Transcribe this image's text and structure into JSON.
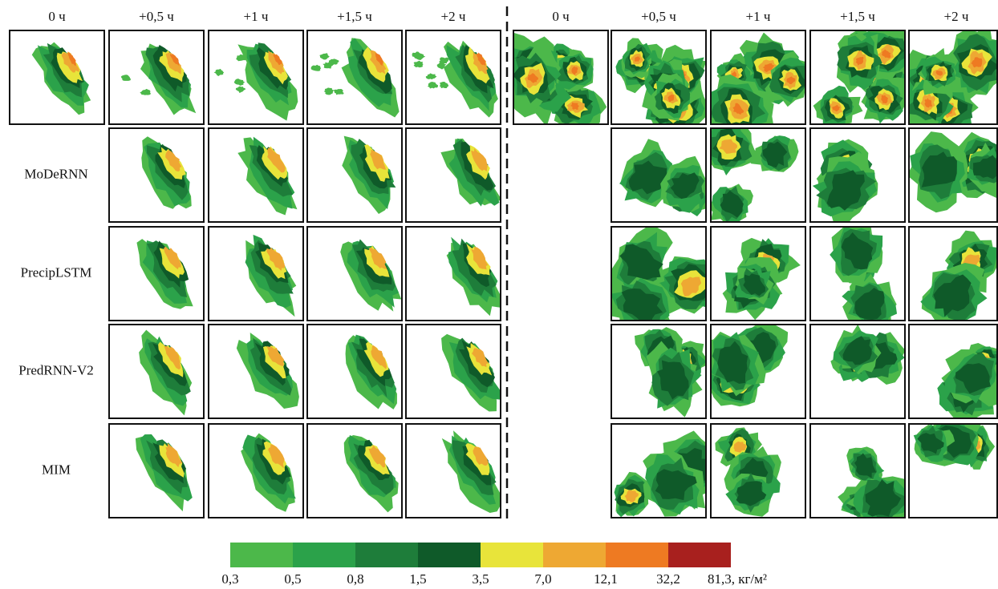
{
  "left_columns": [
    "0 ч",
    "+0,5 ч",
    "+1 ч",
    "+1,5 ч",
    "+2 ч"
  ],
  "right_columns": [
    "0 ч",
    "+0,5 ч",
    "+1 ч",
    "+1,5 ч",
    "+2 ч"
  ],
  "row_labels": [
    "MoDeRNN",
    "PrecipLSTM",
    "PredRNN-V2",
    "MIM"
  ],
  "colorbar": {
    "colors": [
      "#4cb84a",
      "#2ba24a",
      "#1e7d3a",
      "#0f5a29",
      "#e8e43a",
      "#eea833",
      "#ee7a22",
      "#a8201e"
    ],
    "labels": [
      "0,3",
      "0,5",
      "0,8",
      "1,5",
      "3,5",
      "7,0",
      "12,1",
      "32,2",
      "81,3, кг/м²"
    ]
  }
}
